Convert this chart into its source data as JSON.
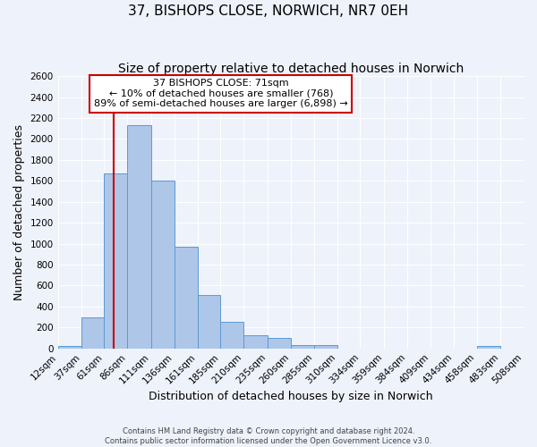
{
  "title": "37, BISHOPS CLOSE, NORWICH, NR7 0EH",
  "subtitle": "Size of property relative to detached houses in Norwich",
  "xlabel": "Distribution of detached houses by size in Norwich",
  "ylabel": "Number of detached properties",
  "bin_edges": [
    12,
    37,
    61,
    86,
    111,
    136,
    161,
    185,
    210,
    235,
    260,
    285,
    310,
    334,
    359,
    384,
    409,
    434,
    458,
    483,
    508
  ],
  "bin_labels": [
    "12sqm",
    "37sqm",
    "61sqm",
    "86sqm",
    "111sqm",
    "136sqm",
    "161sqm",
    "185sqm",
    "210sqm",
    "235sqm",
    "260sqm",
    "285sqm",
    "310sqm",
    "334sqm",
    "359sqm",
    "384sqm",
    "409sqm",
    "434sqm",
    "458sqm",
    "483sqm",
    "508sqm"
  ],
  "counts": [
    20,
    300,
    1670,
    2130,
    1600,
    970,
    510,
    250,
    125,
    100,
    30,
    30,
    0,
    0,
    0,
    0,
    0,
    0,
    20,
    0
  ],
  "bar_color": "#aec6e8",
  "bar_edge_color": "#5b9bd5",
  "red_line_x": 71,
  "annotation_title": "37 BISHOPS CLOSE: 71sqm",
  "annotation_line1": "← 10% of detached houses are smaller (768)",
  "annotation_line2": "89% of semi-detached houses are larger (6,898) →",
  "annotation_box_color": "#ffffff",
  "annotation_box_edge_color": "#cc0000",
  "red_line_color": "#cc0000",
  "ylim": [
    0,
    2600
  ],
  "yticks": [
    0,
    200,
    400,
    600,
    800,
    1000,
    1200,
    1400,
    1600,
    1800,
    2000,
    2200,
    2400,
    2600
  ],
  "footer1": "Contains HM Land Registry data © Crown copyright and database right 2024.",
  "footer2": "Contains public sector information licensed under the Open Government Licence v3.0.",
  "bg_color": "#eef2fb",
  "grid_color": "#ffffff",
  "title_fontsize": 11,
  "subtitle_fontsize": 10,
  "axis_label_fontsize": 9,
  "tick_fontsize": 7.5
}
